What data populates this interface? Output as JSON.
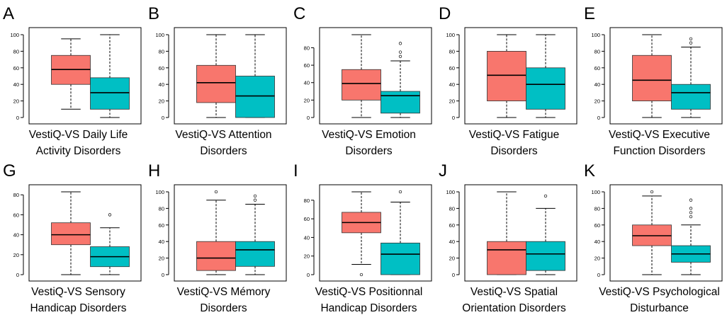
{
  "colors": {
    "group1": "#F8766D",
    "group2": "#00BFC4",
    "median": "#000000",
    "frame": "#000000",
    "whisker": "#000000"
  },
  "chart_data": [
    {
      "type": "boxplot",
      "letter": "A",
      "title_lines": [
        "VestiQ-VS Daily Life",
        "Activity Disorders"
      ],
      "ylim": [
        0,
        100
      ],
      "yticks": [
        0,
        20,
        40,
        60,
        80,
        100
      ],
      "boxes": [
        {
          "min": 10,
          "q1": 40,
          "median": 58,
          "q3": 75,
          "max": 95,
          "outliers": []
        },
        {
          "min": 0,
          "q1": 10,
          "median": 30,
          "q3": 48,
          "max": 100,
          "outliers": []
        }
      ]
    },
    {
      "type": "boxplot",
      "letter": "B",
      "title_lines": [
        "VestiQ-VS Attention",
        "Disorders"
      ],
      "ylim": [
        0,
        100
      ],
      "yticks": [
        0,
        20,
        40,
        60,
        80,
        100
      ],
      "boxes": [
        {
          "min": 0,
          "q1": 18,
          "median": 42,
          "q3": 63,
          "max": 100,
          "outliers": []
        },
        {
          "min": 0,
          "q1": 0,
          "median": 26,
          "q3": 50,
          "max": 100,
          "outliers": []
        }
      ]
    },
    {
      "type": "boxplot",
      "letter": "C",
      "title_lines": [
        "VestiQ-VS Emotion",
        "Disorders"
      ],
      "ylim": [
        0,
        95
      ],
      "yticks": [
        0,
        20,
        40,
        60,
        80
      ],
      "boxes": [
        {
          "min": 0,
          "q1": 20,
          "median": 39,
          "q3": 55,
          "max": 95,
          "outliers": []
        },
        {
          "min": 0,
          "q1": 5,
          "median": 25,
          "q3": 30,
          "max": 65,
          "outliers": [
            70,
            75,
            85
          ]
        }
      ]
    },
    {
      "type": "boxplot",
      "letter": "D",
      "title_lines": [
        "VestiQ-VS Fatigue",
        "Disorders"
      ],
      "ylim": [
        0,
        100
      ],
      "yticks": [
        0,
        20,
        40,
        60,
        80,
        100
      ],
      "boxes": [
        {
          "min": 0,
          "q1": 20,
          "median": 51,
          "q3": 80,
          "max": 100,
          "outliers": []
        },
        {
          "min": 0,
          "q1": 10,
          "median": 40,
          "q3": 60,
          "max": 100,
          "outliers": []
        }
      ]
    },
    {
      "type": "boxplot",
      "letter": "E",
      "title_lines": [
        "VestiQ-VS Executive",
        "Function Disorders"
      ],
      "ylim": [
        0,
        100
      ],
      "yticks": [
        0,
        20,
        40,
        60,
        80,
        100
      ],
      "boxes": [
        {
          "min": 0,
          "q1": 20,
          "median": 45,
          "q3": 75,
          "max": 100,
          "outliers": []
        },
        {
          "min": 0,
          "q1": 10,
          "median": 30,
          "q3": 40,
          "max": 85,
          "outliers": [
            90,
            95
          ]
        }
      ]
    },
    {
      "type": "boxplot",
      "letter": "G",
      "title_lines": [
        "VestiQ-VS Sensory",
        "Handicap Disorders"
      ],
      "ylim": [
        0,
        83
      ],
      "yticks": [
        0,
        20,
        40,
        60,
        80
      ],
      "boxes": [
        {
          "min": 0,
          "q1": 30,
          "median": 40,
          "q3": 52,
          "max": 83,
          "outliers": []
        },
        {
          "min": 0,
          "q1": 8,
          "median": 18,
          "q3": 28,
          "max": 47,
          "outliers": [
            60
          ]
        }
      ]
    },
    {
      "type": "boxplot",
      "letter": "H",
      "title_lines": [
        "VestiQ-VS Mémory",
        "Disorders"
      ],
      "ylim": [
        0,
        100
      ],
      "yticks": [
        0,
        20,
        40,
        60,
        80,
        100
      ],
      "boxes": [
        {
          "min": 0,
          "q1": 5,
          "median": 20,
          "q3": 40,
          "max": 90,
          "outliers": [
            100
          ]
        },
        {
          "min": 0,
          "q1": 10,
          "median": 30,
          "q3": 40,
          "max": 85,
          "outliers": [
            90,
            95
          ]
        }
      ]
    },
    {
      "type": "boxplot",
      "letter": "I",
      "title_lines": [
        "VestiQ-VS Positionnal",
        "Handicap Disorders"
      ],
      "ylim": [
        0,
        89
      ],
      "yticks": [
        0,
        20,
        40,
        60,
        80
      ],
      "boxes": [
        {
          "min": 11,
          "q1": 45,
          "median": 56,
          "q3": 67,
          "max": 89,
          "outliers": [
            0
          ]
        },
        {
          "min": 0,
          "q1": 0,
          "median": 22,
          "q3": 34,
          "max": 78,
          "outliers": [
            89
          ]
        }
      ]
    },
    {
      "type": "boxplot",
      "letter": "J",
      "title_lines": [
        "VestiQ-VS Spatial",
        "Orientation Disorders"
      ],
      "ylim": [
        0,
        100
      ],
      "yticks": [
        0,
        20,
        40,
        60,
        80,
        100
      ],
      "boxes": [
        {
          "min": 0,
          "q1": 0,
          "median": 30,
          "q3": 40,
          "max": 100,
          "outliers": []
        },
        {
          "min": 0,
          "q1": 5,
          "median": 25,
          "q3": 40,
          "max": 80,
          "outliers": [
            95
          ]
        }
      ]
    },
    {
      "type": "boxplot",
      "letter": "K",
      "title_lines": [
        "VestiQ-VS Psychological",
        "Disturbance"
      ],
      "ylim": [
        0,
        100
      ],
      "yticks": [
        0,
        20,
        40,
        60,
        80,
        100
      ],
      "boxes": [
        {
          "min": 0,
          "q1": 35,
          "median": 47,
          "q3": 60,
          "max": 95,
          "outliers": [
            100
          ]
        },
        {
          "min": 0,
          "q1": 15,
          "median": 25,
          "q3": 35,
          "max": 60,
          "outliers": [
            70,
            75,
            80,
            90
          ]
        }
      ]
    }
  ]
}
